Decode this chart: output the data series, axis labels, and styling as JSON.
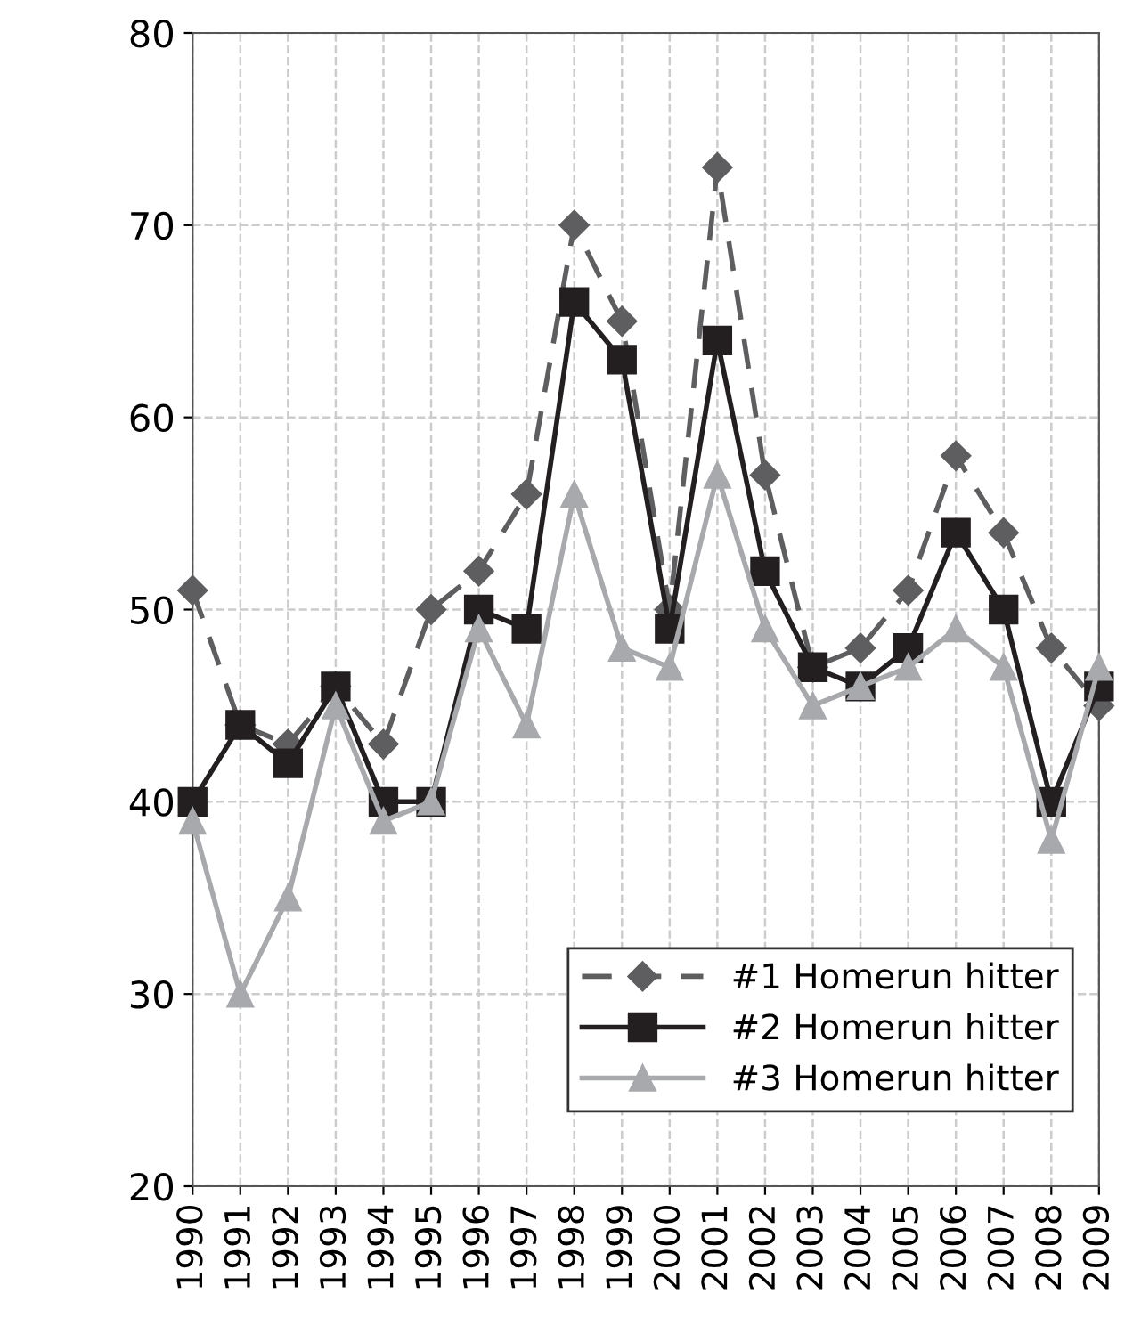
{
  "chart_data": {
    "type": "line",
    "categories": [
      "1990",
      "1991",
      "1992",
      "1993",
      "1994",
      "1995",
      "1996",
      "1997",
      "1998",
      "1999",
      "2000",
      "2001",
      "2002",
      "2003",
      "2004",
      "2005",
      "2006",
      "2007",
      "2008",
      "2009"
    ],
    "series": [
      {
        "name": "#1 Homerun hitter",
        "color": "#5e5e60",
        "marker": "diamond",
        "line_style": "dashed",
        "values": [
          51,
          44,
          43,
          46,
          43,
          50,
          52,
          56,
          70,
          65,
          50,
          73,
          57,
          47,
          48,
          51,
          58,
          54,
          48,
          45
        ]
      },
      {
        "name": "#2 Homerun hitter",
        "color": "#231f20",
        "marker": "square",
        "line_style": "solid",
        "values": [
          40,
          44,
          42,
          46,
          40,
          40,
          50,
          49,
          66,
          63,
          49,
          64,
          52,
          47,
          46,
          48,
          54,
          50,
          40,
          46
        ]
      },
      {
        "name": "#3 Homerun hitter",
        "color": "#a7a9ac",
        "marker": "triangle",
        "line_style": "solid",
        "values": [
          39,
          30,
          35,
          45,
          39,
          40,
          49,
          44,
          56,
          48,
          47,
          57,
          49,
          45,
          46,
          47,
          49,
          47,
          38,
          47
        ]
      }
    ],
    "ylim": [
      20,
      80
    ],
    "yticks": [
      20,
      30,
      40,
      50,
      60,
      70,
      80
    ],
    "grid": true,
    "legend": "bottom right"
  }
}
